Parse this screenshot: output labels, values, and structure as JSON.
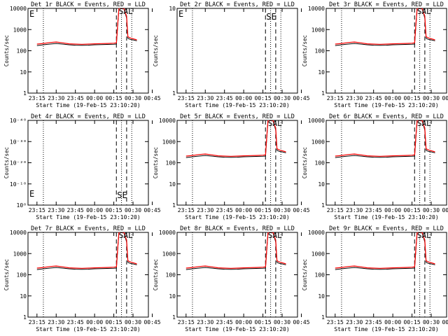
{
  "chart_data": {
    "type": "line",
    "x_ticks": [
      "23:15",
      "23:30",
      "23:45",
      "00:00",
      "00:15",
      "00:30",
      "00:45"
    ],
    "xlabel": "Start Time (19-Feb-15 23:10:20)",
    "ylabel": "Counts/sec",
    "ylim": [
      1,
      15000
    ],
    "log_scale": true,
    "grid": false,
    "legend": "none",
    "colors": {
      "events": "#000000",
      "lld": "#ff0000"
    },
    "time_points_min": [
      0,
      5,
      10,
      15,
      20,
      25,
      30,
      35,
      40,
      45,
      50,
      55,
      60,
      62,
      63,
      64,
      66,
      68,
      70,
      71,
      73,
      75,
      78
    ],
    "events_values": [
      220,
      240,
      260,
      280,
      260,
      240,
      230,
      225,
      230,
      240,
      245,
      250,
      255,
      260,
      2000,
      15000,
      15000,
      14000,
      5000,
      500,
      440,
      420,
      380
    ],
    "lld_values": [
      260,
      280,
      310,
      330,
      300,
      270,
      260,
      255,
      260,
      270,
      275,
      280,
      290,
      300,
      2400,
      15000,
      15000,
      15000,
      6000,
      600,
      520,
      480,
      420
    ],
    "vlines_dotted_min": [
      5,
      66,
      74
    ],
    "vlines_dashed_min": [
      62,
      70
    ],
    "panels": [
      {
        "title": "Det 1r BLACK = Events, RED = LLD",
        "y_ticks": [
          "1",
          "10",
          "100",
          "1000",
          "10000"
        ],
        "annotations": [
          "E",
          "SAL"
        ],
        "has_data": true
      },
      {
        "title": "Det 2r BLACK = Events, RED = LLD",
        "y_ticks": [
          "1",
          "10"
        ],
        "annotations": [
          "E",
          "SE"
        ],
        "has_data": false
      },
      {
        "title": "Det 3r BLACK = Events, RED = LLD",
        "y_ticks": [
          "1",
          "10",
          "100",
          "1000",
          "10000"
        ],
        "annotations": [
          "SAL"
        ],
        "has_data": true
      },
      {
        "title": "Det 4r BLACK = Events, RED = LLD",
        "y_ticks": [
          "10⁰",
          "10⁻¹⁰",
          "10⁻²⁰",
          "10⁻³⁰",
          "10⁻⁴⁰"
        ],
        "annotations": [
          "E",
          "SE"
        ],
        "has_data": false
      },
      {
        "title": "Det 5r BLACK = Events, RED = LLD",
        "y_ticks": [
          "1",
          "10",
          "100",
          "1000",
          "10000"
        ],
        "annotations": [
          "SAL"
        ],
        "has_data": true
      },
      {
        "title": "Det 6r BLACK = Events, RED = LLD",
        "y_ticks": [
          "1",
          "10",
          "100",
          "1000",
          "10000"
        ],
        "annotations": [
          "SAL"
        ],
        "has_data": true
      },
      {
        "title": "Det 7r BLACK = Events, RED = LLD",
        "y_ticks": [
          "1",
          "10",
          "100",
          "1000",
          "10000"
        ],
        "annotations": [
          "SAL"
        ],
        "has_data": true
      },
      {
        "title": "Det 8r BLACK = Events, RED = LLD",
        "y_ticks": [
          "1",
          "10",
          "100",
          "1000",
          "10000"
        ],
        "annotations": [
          "SAL"
        ],
        "has_data": true
      },
      {
        "title": "Det 9r BLACK = Events, RED = LLD",
        "y_ticks": [
          "1",
          "10",
          "100",
          "1000",
          "10000"
        ],
        "annotations": [
          "SAL"
        ],
        "has_data": true
      }
    ]
  }
}
